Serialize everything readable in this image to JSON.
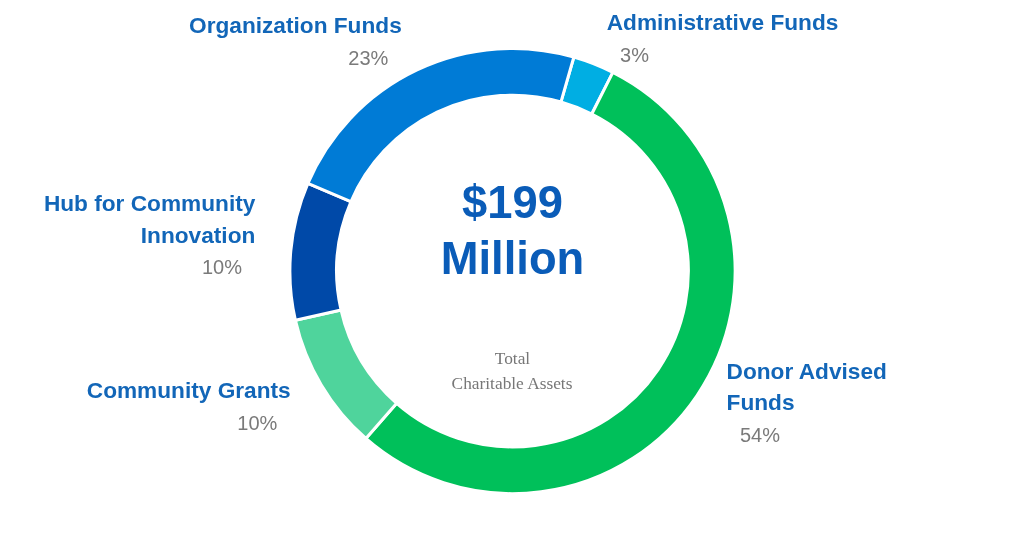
{
  "chart_data": {
    "type": "donut",
    "categories": [
      "Administrative Funds",
      "Donor Advised\nFunds",
      "Community Grants",
      "Hub for Community\nInnovation",
      "Organization Funds"
    ],
    "values": [
      3,
      54,
      10,
      10,
      23
    ],
    "value_labels": [
      "3%",
      "54%",
      "10%",
      "10%",
      "23%"
    ],
    "colors": [
      "#00aee3",
      "#00c05a",
      "#4fd49c",
      "#0049a8",
      "#007bd6"
    ],
    "annotations": [
      "$199\nMillion",
      "Total\nCharitable Assets"
    ]
  }
}
